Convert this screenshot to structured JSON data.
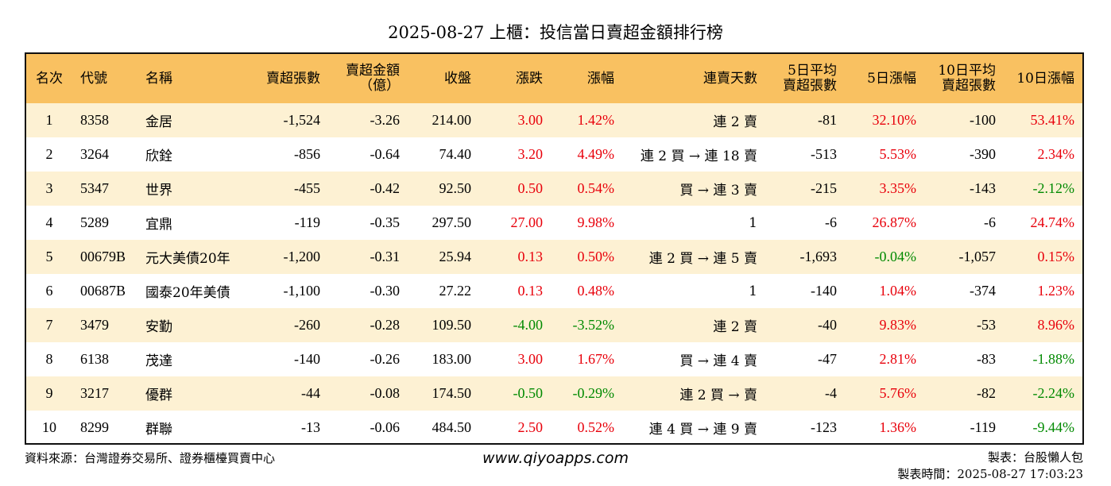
{
  "title": "2025-08-27 上櫃：投信當日賣超金額排行榜",
  "columns": [
    {
      "key": "rank",
      "label": [
        "名次"
      ],
      "align": "c"
    },
    {
      "key": "code",
      "label": [
        "代號"
      ],
      "align": "l"
    },
    {
      "key": "name",
      "label": [
        "名稱"
      ],
      "align": "l"
    },
    {
      "key": "sell_lots",
      "label": [
        "賣超張數"
      ],
      "align": "r"
    },
    {
      "key": "sell_amount",
      "label": [
        "賣超金額",
        "（億）"
      ],
      "align": "r"
    },
    {
      "key": "close",
      "label": [
        "收盤"
      ],
      "align": "r"
    },
    {
      "key": "change",
      "label": [
        "漲跌"
      ],
      "align": "r"
    },
    {
      "key": "pct",
      "label": [
        "漲幅"
      ],
      "align": "r"
    },
    {
      "key": "streak",
      "label": [
        "連賣天數"
      ],
      "align": "r"
    },
    {
      "key": "avg5",
      "label": [
        "5日平均",
        "賣超張數"
      ],
      "align": "r"
    },
    {
      "key": "pct5",
      "label": [
        "5日漲幅"
      ],
      "align": "r"
    },
    {
      "key": "avg10",
      "label": [
        "10日平均",
        "賣超張數"
      ],
      "align": "r"
    },
    {
      "key": "pct10",
      "label": [
        "10日漲幅"
      ],
      "align": "r"
    }
  ],
  "colors": {
    "header_bg": "#F9C161",
    "stripe_bg": "#FDF1D3",
    "up": "#E8000B",
    "down": "#008A00"
  },
  "rows": [
    {
      "rank": "1",
      "code": "8358",
      "name": "金居",
      "sell_lots": "-1,524",
      "sell_amount": "-3.26",
      "close": "214.00",
      "change": "3.00",
      "change_dir": "up",
      "pct": "1.42%",
      "pct_dir": "up",
      "streak": "連 2 賣",
      "avg5": "-81",
      "pct5": "32.10%",
      "pct5_dir": "up",
      "avg10": "-100",
      "pct10": "53.41%",
      "pct10_dir": "up"
    },
    {
      "rank": "2",
      "code": "3264",
      "name": "欣銓",
      "sell_lots": "-856",
      "sell_amount": "-0.64",
      "close": "74.40",
      "change": "3.20",
      "change_dir": "up",
      "pct": "4.49%",
      "pct_dir": "up",
      "streak": "連 2 買 → 連 18 賣",
      "avg5": "-513",
      "pct5": "5.53%",
      "pct5_dir": "up",
      "avg10": "-390",
      "pct10": "2.34%",
      "pct10_dir": "up"
    },
    {
      "rank": "3",
      "code": "5347",
      "name": "世界",
      "sell_lots": "-455",
      "sell_amount": "-0.42",
      "close": "92.50",
      "change": "0.50",
      "change_dir": "up",
      "pct": "0.54%",
      "pct_dir": "up",
      "streak": "買 → 連 3 賣",
      "avg5": "-215",
      "pct5": "3.35%",
      "pct5_dir": "up",
      "avg10": "-143",
      "pct10": "-2.12%",
      "pct10_dir": "down"
    },
    {
      "rank": "4",
      "code": "5289",
      "name": "宜鼎",
      "sell_lots": "-119",
      "sell_amount": "-0.35",
      "close": "297.50",
      "change": "27.00",
      "change_dir": "up",
      "pct": "9.98%",
      "pct_dir": "up",
      "streak": "1",
      "avg5": "-6",
      "pct5": "26.87%",
      "pct5_dir": "up",
      "avg10": "-6",
      "pct10": "24.74%",
      "pct10_dir": "up"
    },
    {
      "rank": "5",
      "code": "00679B",
      "name": "元大美債20年",
      "sell_lots": "-1,200",
      "sell_amount": "-0.31",
      "close": "25.94",
      "change": "0.13",
      "change_dir": "up",
      "pct": "0.50%",
      "pct_dir": "up",
      "streak": "連 2 買 → 連 5 賣",
      "avg5": "-1,693",
      "pct5": "-0.04%",
      "pct5_dir": "down",
      "avg10": "-1,057",
      "pct10": "0.15%",
      "pct10_dir": "up"
    },
    {
      "rank": "6",
      "code": "00687B",
      "name": "國泰20年美債",
      "sell_lots": "-1,100",
      "sell_amount": "-0.30",
      "close": "27.22",
      "change": "0.13",
      "change_dir": "up",
      "pct": "0.48%",
      "pct_dir": "up",
      "streak": "1",
      "avg5": "-140",
      "pct5": "1.04%",
      "pct5_dir": "up",
      "avg10": "-374",
      "pct10": "1.23%",
      "pct10_dir": "up"
    },
    {
      "rank": "7",
      "code": "3479",
      "name": "安勤",
      "sell_lots": "-260",
      "sell_amount": "-0.28",
      "close": "109.50",
      "change": "-4.00",
      "change_dir": "down",
      "pct": "-3.52%",
      "pct_dir": "down",
      "streak": "連 2 賣",
      "avg5": "-40",
      "pct5": "9.83%",
      "pct5_dir": "up",
      "avg10": "-53",
      "pct10": "8.96%",
      "pct10_dir": "up"
    },
    {
      "rank": "8",
      "code": "6138",
      "name": "茂達",
      "sell_lots": "-140",
      "sell_amount": "-0.26",
      "close": "183.00",
      "change": "3.00",
      "change_dir": "up",
      "pct": "1.67%",
      "pct_dir": "up",
      "streak": "買 → 連 4 賣",
      "avg5": "-47",
      "pct5": "2.81%",
      "pct5_dir": "up",
      "avg10": "-83",
      "pct10": "-1.88%",
      "pct10_dir": "down"
    },
    {
      "rank": "9",
      "code": "3217",
      "name": "優群",
      "sell_lots": "-44",
      "sell_amount": "-0.08",
      "close": "174.50",
      "change": "-0.50",
      "change_dir": "down",
      "pct": "-0.29%",
      "pct_dir": "down",
      "streak": "連 2 買 → 賣",
      "avg5": "-4",
      "pct5": "5.76%",
      "pct5_dir": "up",
      "avg10": "-82",
      "pct10": "-2.24%",
      "pct10_dir": "down"
    },
    {
      "rank": "10",
      "code": "8299",
      "name": "群聯",
      "sell_lots": "-13",
      "sell_amount": "-0.06",
      "close": "484.50",
      "change": "2.50",
      "change_dir": "up",
      "pct": "0.52%",
      "pct_dir": "up",
      "streak": "連 4 買 → 連 9 賣",
      "avg5": "-123",
      "pct5": "1.36%",
      "pct5_dir": "up",
      "avg10": "-119",
      "pct10": "-9.44%",
      "pct10_dir": "down"
    }
  ],
  "footer": {
    "source": "資料來源：台灣證券交易所、證券櫃檯買賣中心",
    "website": "www.qiyoapps.com",
    "author": "製表：台股懶人包",
    "made_time": "製表時間：2025-08-27 17:03:23"
  }
}
